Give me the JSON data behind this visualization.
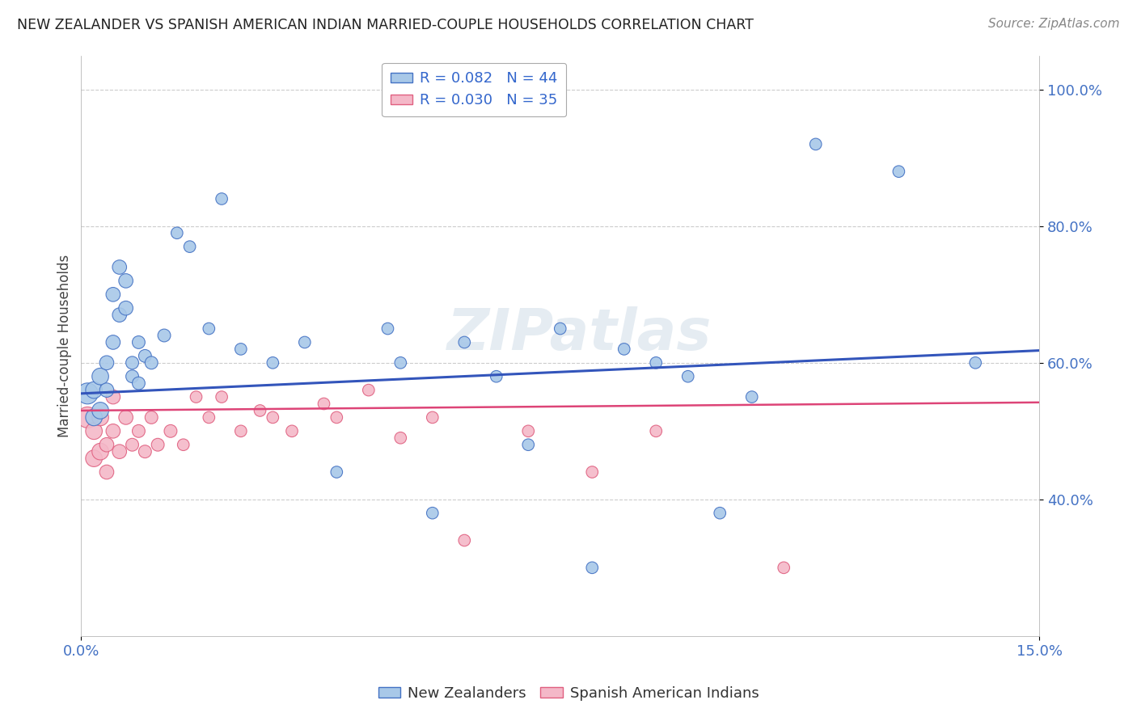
{
  "title": "NEW ZEALANDER VS SPANISH AMERICAN INDIAN MARRIED-COUPLE HOUSEHOLDS CORRELATION CHART",
  "source": "Source: ZipAtlas.com",
  "ylabel": "Married-couple Households",
  "xlim": [
    0.0,
    0.15
  ],
  "ylim": [
    0.2,
    1.05
  ],
  "x_tick_labels": [
    "0.0%",
    "15.0%"
  ],
  "y_ticks": [
    0.4,
    0.6,
    0.8,
    1.0
  ],
  "y_tick_labels": [
    "40.0%",
    "60.0%",
    "80.0%",
    "100.0%"
  ],
  "blue_R": 0.082,
  "blue_N": 44,
  "pink_R": 0.03,
  "pink_N": 35,
  "blue_color": "#a8c8e8",
  "pink_color": "#f4b8c8",
  "blue_edge_color": "#4472c4",
  "pink_edge_color": "#e06080",
  "blue_line_color": "#3355bb",
  "pink_line_color": "#dd4477",
  "legend_label_blue": "New Zealanders",
  "legend_label_pink": "Spanish American Indians",
  "blue_trend_x0": 0.0,
  "blue_trend_y0": 0.555,
  "blue_trend_x1": 0.15,
  "blue_trend_y1": 0.618,
  "pink_trend_x0": 0.0,
  "pink_trend_y0": 0.53,
  "pink_trend_x1": 0.15,
  "pink_trend_y1": 0.542,
  "blue_x": [
    0.001,
    0.002,
    0.002,
    0.003,
    0.003,
    0.004,
    0.004,
    0.005,
    0.005,
    0.006,
    0.006,
    0.007,
    0.007,
    0.008,
    0.008,
    0.009,
    0.009,
    0.01,
    0.011,
    0.013,
    0.015,
    0.017,
    0.02,
    0.022,
    0.025,
    0.03,
    0.035,
    0.04,
    0.048,
    0.05,
    0.055,
    0.06,
    0.065,
    0.07,
    0.075,
    0.08,
    0.085,
    0.09,
    0.095,
    0.1,
    0.105,
    0.115,
    0.128,
    0.14
  ],
  "blue_y": [
    0.555,
    0.56,
    0.52,
    0.58,
    0.53,
    0.6,
    0.56,
    0.63,
    0.7,
    0.67,
    0.74,
    0.68,
    0.72,
    0.6,
    0.58,
    0.63,
    0.57,
    0.61,
    0.6,
    0.64,
    0.79,
    0.77,
    0.65,
    0.84,
    0.62,
    0.6,
    0.63,
    0.44,
    0.65,
    0.6,
    0.38,
    0.63,
    0.58,
    0.48,
    0.65,
    0.3,
    0.62,
    0.6,
    0.58,
    0.38,
    0.55,
    0.92,
    0.88,
    0.6
  ],
  "pink_x": [
    0.001,
    0.002,
    0.002,
    0.003,
    0.003,
    0.004,
    0.004,
    0.005,
    0.005,
    0.006,
    0.007,
    0.008,
    0.009,
    0.01,
    0.011,
    0.012,
    0.014,
    0.016,
    0.018,
    0.02,
    0.022,
    0.025,
    0.028,
    0.03,
    0.033,
    0.038,
    0.04,
    0.045,
    0.05,
    0.055,
    0.06,
    0.07,
    0.08,
    0.09,
    0.11
  ],
  "pink_y": [
    0.52,
    0.5,
    0.46,
    0.52,
    0.47,
    0.48,
    0.44,
    0.5,
    0.55,
    0.47,
    0.52,
    0.48,
    0.5,
    0.47,
    0.52,
    0.48,
    0.5,
    0.48,
    0.55,
    0.52,
    0.55,
    0.5,
    0.53,
    0.52,
    0.5,
    0.54,
    0.52,
    0.56,
    0.49,
    0.52,
    0.34,
    0.5,
    0.44,
    0.5,
    0.3
  ]
}
